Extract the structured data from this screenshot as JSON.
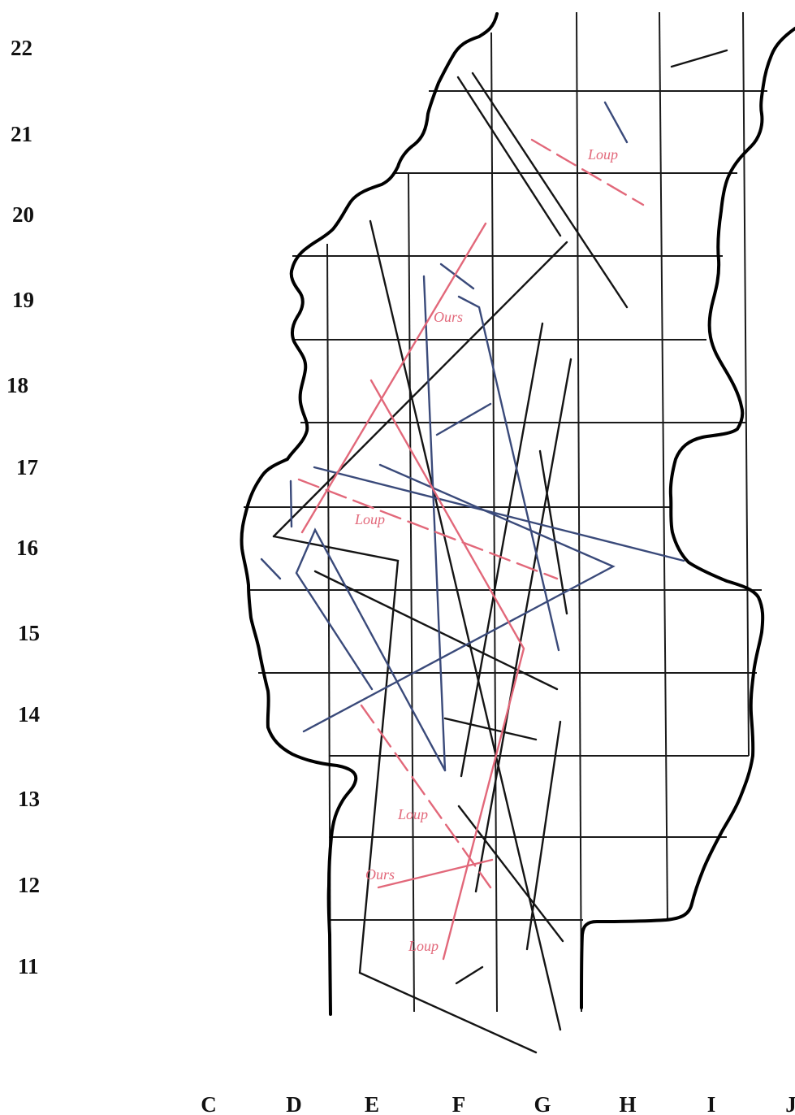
{
  "row_labels": [
    "22",
    "21",
    "20",
    "19",
    "18",
    "17",
    "16",
    "15",
    "14",
    "13",
    "12",
    "11"
  ],
  "col_labels": [
    "C",
    "D",
    "E",
    "F",
    "G",
    "H",
    "I",
    "J"
  ],
  "line_labels": [
    "Loup",
    "Ours",
    "Loup",
    "Loup",
    "Ours",
    "Loup"
  ],
  "colors": {
    "black": "#141414",
    "blue": "#3a4a7a",
    "red": "#e2687a"
  }
}
